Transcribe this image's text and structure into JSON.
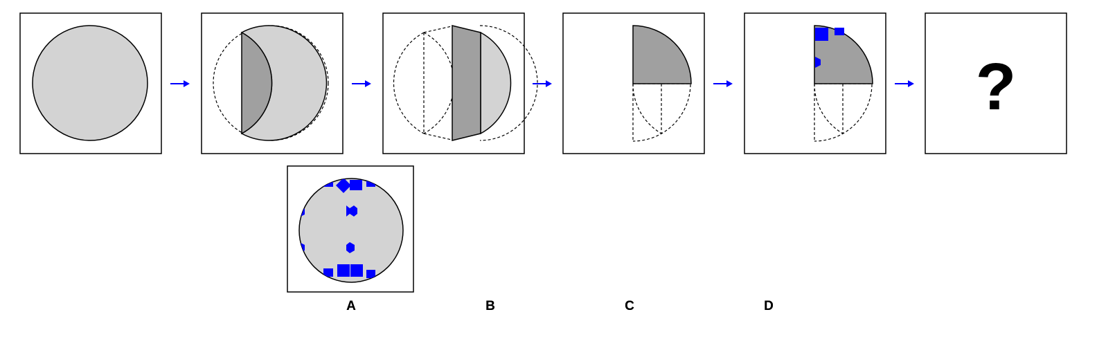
{
  "sequence": {
    "question_mark": "?",
    "arrow_count": 5
  },
  "options": [
    {
      "label": "A"
    },
    {
      "label": "B"
    },
    {
      "label": "C"
    },
    {
      "label": "D"
    }
  ],
  "colors": {
    "circle_fill": "#d3d3d3",
    "fold_fill": "#a0a0a0",
    "hole_fill": "#0000ff",
    "arrow": "#0000ff",
    "outline": "#000000"
  },
  "icons": [
    "right-arrow-icon",
    "question-mark-icon"
  ]
}
